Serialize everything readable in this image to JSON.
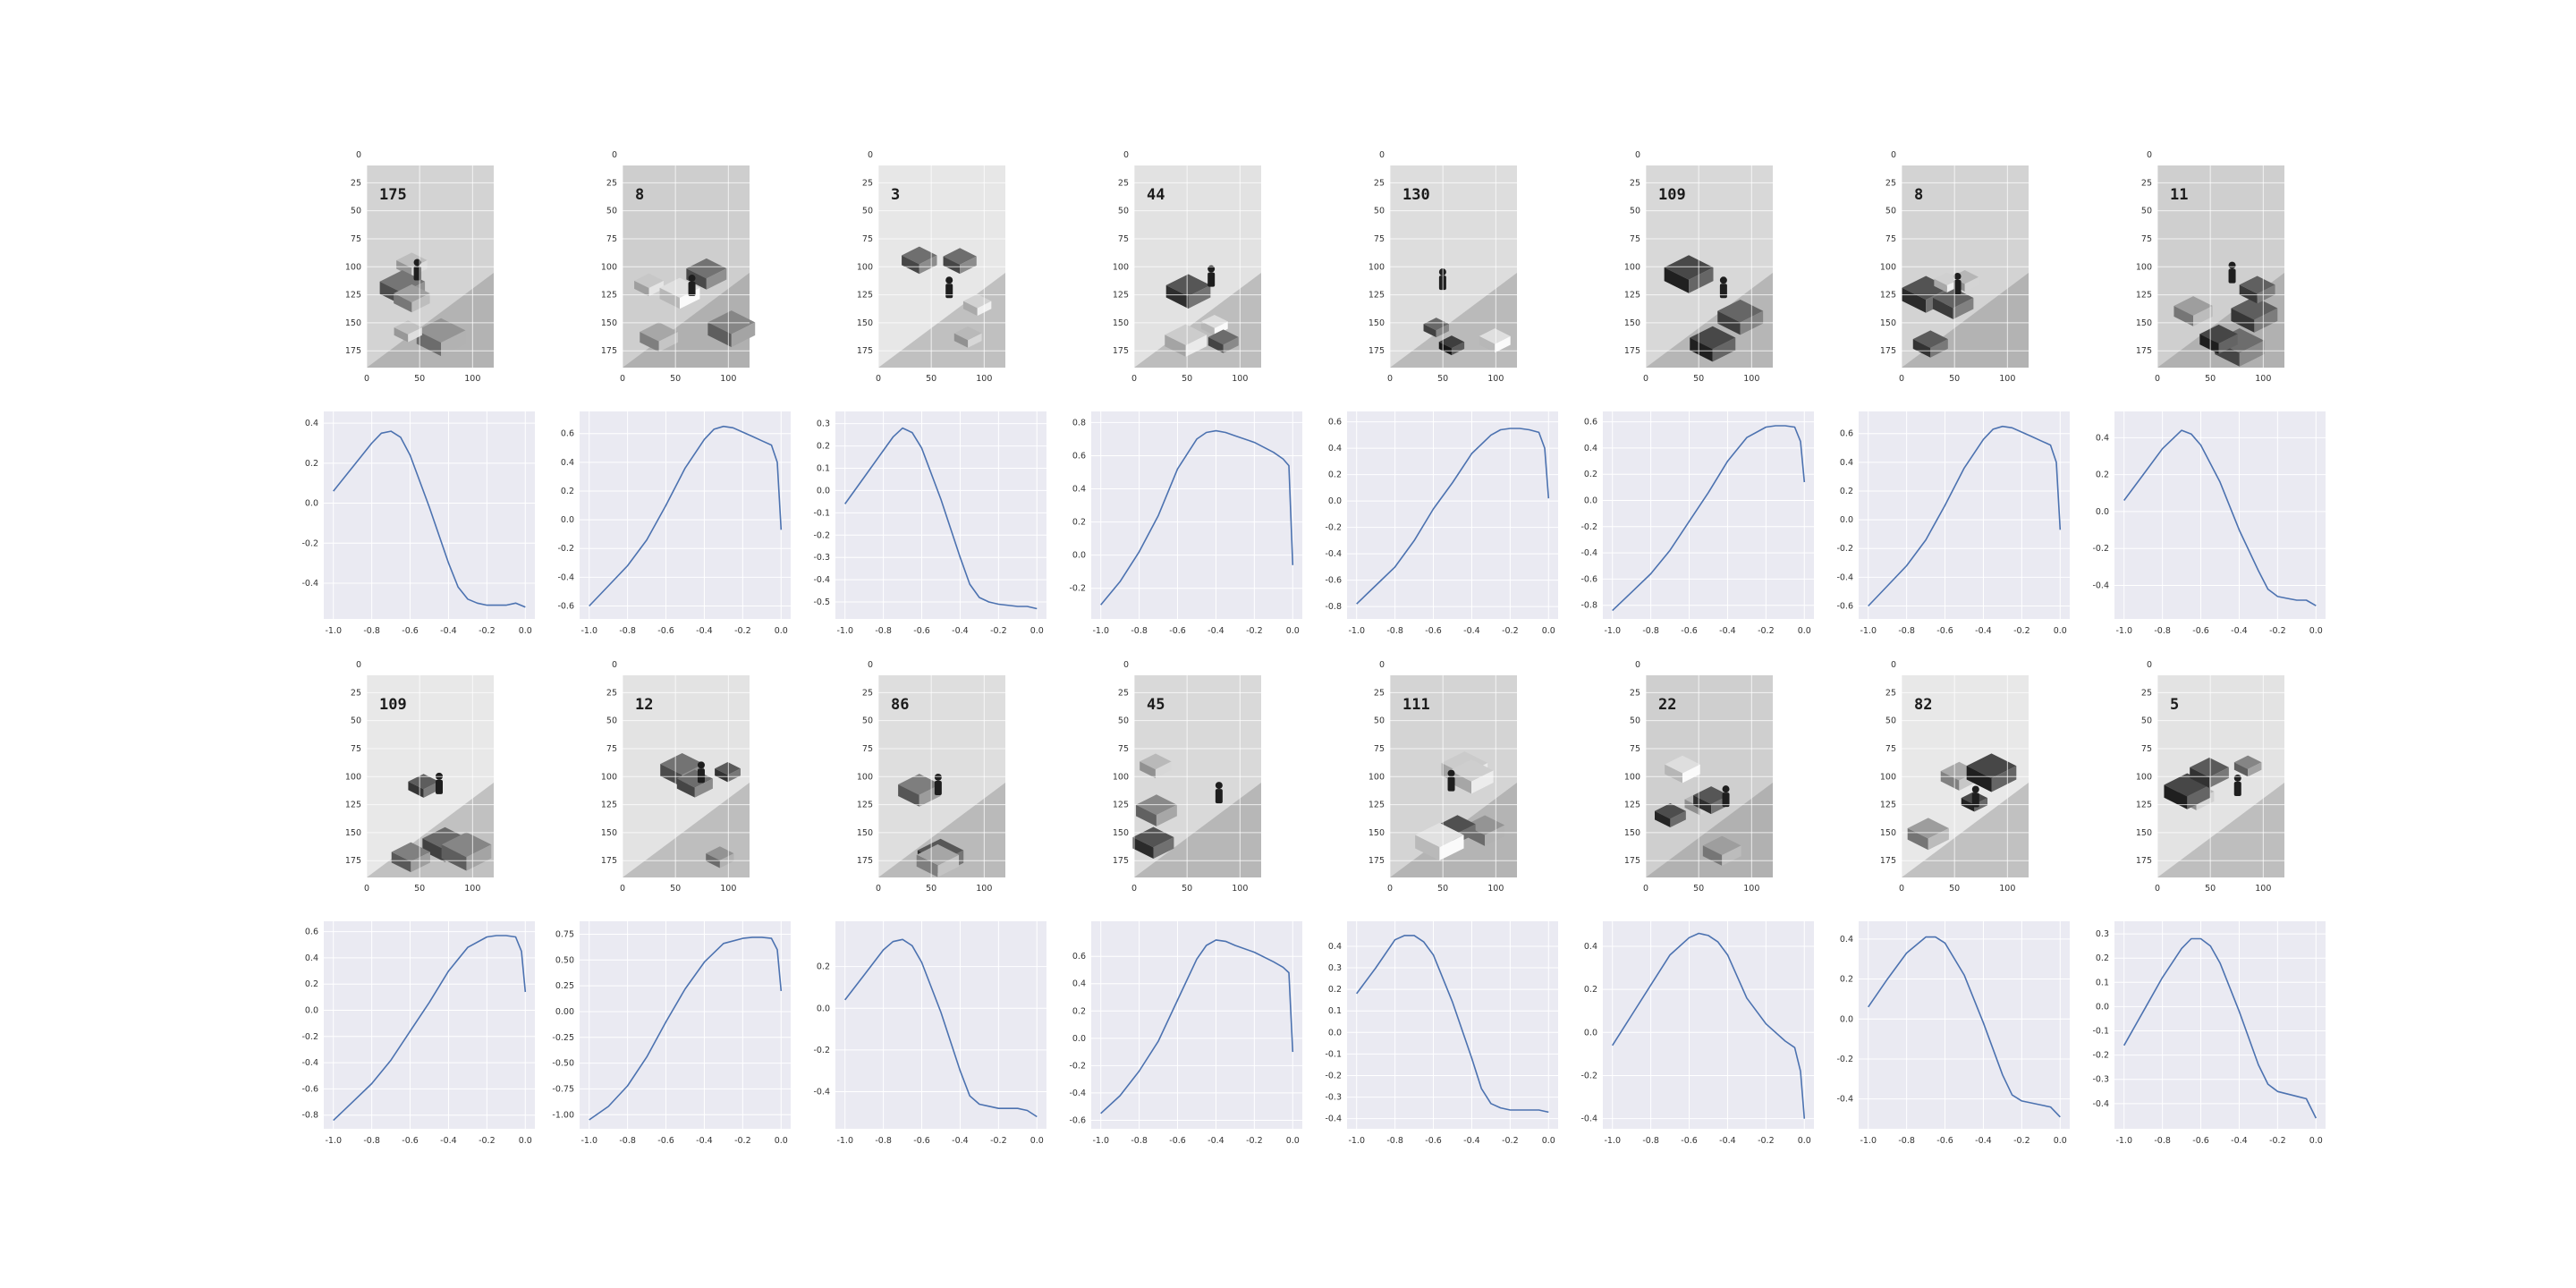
{
  "figure": {
    "rows": 4,
    "cols": 8,
    "layout": "alternating rows: game frames, then value curves"
  },
  "colors": {
    "line": "#4c72b0",
    "plot_background": "#eaeaf2",
    "grid": "#ffffff"
  },
  "frame_axes": {
    "y_ticks": [
      "0",
      "25",
      "50",
      "75",
      "100",
      "125",
      "150",
      "175"
    ],
    "x_ticks": [
      "0",
      "50",
      "100"
    ],
    "ylim": [
      0,
      190
    ],
    "xlim": [
      0,
      120
    ]
  },
  "frames": [
    {
      "score": "175"
    },
    {
      "score": "8"
    },
    {
      "score": "3"
    },
    {
      "score": "44"
    },
    {
      "score": "130"
    },
    {
      "score": "109"
    },
    {
      "score": "8"
    },
    {
      "score": "11"
    },
    {
      "score": "109"
    },
    {
      "score": "12"
    },
    {
      "score": "86"
    },
    {
      "score": "45"
    },
    {
      "score": "111"
    },
    {
      "score": "22"
    },
    {
      "score": "82"
    },
    {
      "score": "5"
    }
  ],
  "chart_data": [
    {
      "type": "line",
      "x_ticks": [
        "-1.0",
        "-0.8",
        "-0.6",
        "-0.4",
        "-0.2",
        "0.0"
      ],
      "y_ticks": [
        "-0.4",
        "-0.2",
        "0.0",
        "0.2",
        "0.4"
      ],
      "ylim": [
        -0.55,
        0.42
      ],
      "x": [
        -1.0,
        -0.9,
        -0.8,
        -0.75,
        -0.7,
        -0.65,
        -0.6,
        -0.5,
        -0.4,
        -0.35,
        -0.3,
        -0.25,
        -0.2,
        -0.1,
        -0.05,
        0.0
      ],
      "y": [
        0.06,
        0.18,
        0.3,
        0.35,
        0.36,
        0.33,
        0.24,
        -0.02,
        -0.3,
        -0.42,
        -0.48,
        -0.5,
        -0.51,
        -0.51,
        -0.5,
        -0.52
      ]
    },
    {
      "type": "line",
      "x_ticks": [
        "-1.0",
        "-0.8",
        "-0.6",
        "-0.4",
        "-0.2",
        "0.0"
      ],
      "y_ticks": [
        "-0.6",
        "-0.4",
        "-0.2",
        "0.0",
        "0.2",
        "0.4",
        "0.6"
      ],
      "ylim": [
        -0.65,
        0.7
      ],
      "x": [
        -1.0,
        -0.9,
        -0.8,
        -0.7,
        -0.6,
        -0.5,
        -0.4,
        -0.35,
        -0.3,
        -0.25,
        -0.2,
        -0.15,
        -0.1,
        -0.05,
        -0.02,
        0.0
      ],
      "y": [
        -0.6,
        -0.46,
        -0.32,
        -0.14,
        0.1,
        0.36,
        0.56,
        0.63,
        0.65,
        0.64,
        0.61,
        0.58,
        0.55,
        0.52,
        0.4,
        -0.07
      ]
    },
    {
      "type": "line",
      "x_ticks": [
        "-1.0",
        "-0.8",
        "-0.6",
        "-0.4",
        "-0.2",
        "0.0"
      ],
      "y_ticks": [
        "-0.5",
        "-0.4",
        "-0.3",
        "-0.2",
        "-0.1",
        "0.0",
        "0.1",
        "0.2",
        "0.3"
      ],
      "ylim": [
        -0.55,
        0.32
      ],
      "x": [
        -1.0,
        -0.9,
        -0.8,
        -0.75,
        -0.7,
        -0.65,
        -0.6,
        -0.5,
        -0.4,
        -0.35,
        -0.3,
        -0.25,
        -0.2,
        -0.1,
        -0.05,
        0.0
      ],
      "y": [
        -0.06,
        0.06,
        0.18,
        0.24,
        0.28,
        0.26,
        0.19,
        -0.04,
        -0.3,
        -0.42,
        -0.48,
        -0.5,
        -0.51,
        -0.52,
        -0.52,
        -0.53
      ]
    },
    {
      "type": "line",
      "x_ticks": [
        "-1.0",
        "-0.8",
        "-0.6",
        "-0.4",
        "-0.2",
        "0.0"
      ],
      "y_ticks": [
        "-0.2",
        "0.0",
        "0.2",
        "0.4",
        "0.6",
        "0.8"
      ],
      "ylim": [
        -0.35,
        0.82
      ],
      "x": [
        -1.0,
        -0.9,
        -0.8,
        -0.7,
        -0.6,
        -0.5,
        -0.45,
        -0.4,
        -0.35,
        -0.3,
        -0.2,
        -0.1,
        -0.05,
        -0.02,
        0.0
      ],
      "y": [
        -0.3,
        -0.16,
        0.02,
        0.24,
        0.52,
        0.7,
        0.74,
        0.75,
        0.74,
        0.72,
        0.68,
        0.62,
        0.58,
        0.54,
        -0.06
      ]
    },
    {
      "type": "line",
      "x_ticks": [
        "-1.0",
        "-0.8",
        "-0.6",
        "-0.4",
        "-0.2",
        "0.0"
      ],
      "y_ticks": [
        "-0.8",
        "-0.6",
        "-0.4",
        "-0.2",
        "0.0",
        "0.2",
        "0.4",
        "0.6"
      ],
      "ylim": [
        -0.85,
        0.62
      ],
      "x": [
        -1.0,
        -0.9,
        -0.8,
        -0.7,
        -0.6,
        -0.5,
        -0.4,
        -0.3,
        -0.25,
        -0.2,
        -0.15,
        -0.1,
        -0.05,
        -0.02,
        0.0
      ],
      "y": [
        -0.78,
        -0.64,
        -0.5,
        -0.3,
        -0.06,
        0.14,
        0.36,
        0.5,
        0.54,
        0.55,
        0.55,
        0.54,
        0.52,
        0.4,
        0.02
      ]
    },
    {
      "type": "line",
      "x_ticks": [
        "-1.0",
        "-0.8",
        "-0.6",
        "-0.4",
        "-0.2",
        "0.0"
      ],
      "y_ticks": [
        "-0.8",
        "-0.6",
        "-0.4",
        "-0.2",
        "0.0",
        "0.2",
        "0.4",
        "0.6"
      ],
      "ylim": [
        -0.86,
        0.62
      ],
      "x": [
        -1.0,
        -0.9,
        -0.8,
        -0.7,
        -0.6,
        -0.5,
        -0.4,
        -0.3,
        -0.2,
        -0.15,
        -0.1,
        -0.05,
        -0.02,
        0.0
      ],
      "y": [
        -0.84,
        -0.7,
        -0.56,
        -0.38,
        -0.16,
        0.06,
        0.3,
        0.48,
        0.56,
        0.57,
        0.57,
        0.56,
        0.45,
        0.14
      ]
    },
    {
      "type": "line",
      "x_ticks": [
        "-1.0",
        "-0.8",
        "-0.6",
        "-0.4",
        "-0.2",
        "0.0"
      ],
      "y_ticks": [
        "-0.6",
        "-0.4",
        "-0.2",
        "0.0",
        "0.2",
        "0.4",
        "0.6"
      ],
      "ylim": [
        -0.65,
        0.7
      ],
      "x": [
        -1.0,
        -0.9,
        -0.8,
        -0.7,
        -0.6,
        -0.5,
        -0.4,
        -0.35,
        -0.3,
        -0.25,
        -0.2,
        -0.15,
        -0.1,
        -0.05,
        -0.02,
        0.0
      ],
      "y": [
        -0.6,
        -0.46,
        -0.32,
        -0.14,
        0.1,
        0.36,
        0.56,
        0.63,
        0.65,
        0.64,
        0.61,
        0.58,
        0.55,
        0.52,
        0.4,
        -0.07
      ]
    },
    {
      "type": "line",
      "x_ticks": [
        "-1.0",
        "-0.8",
        "-0.6",
        "-0.4",
        "-0.2",
        "0.0"
      ],
      "y_ticks": [
        "-0.4",
        "-0.2",
        "0.0",
        "0.2",
        "0.4"
      ],
      "ylim": [
        -0.55,
        0.5
      ],
      "x": [
        -1.0,
        -0.9,
        -0.8,
        -0.7,
        -0.65,
        -0.6,
        -0.5,
        -0.4,
        -0.3,
        -0.25,
        -0.2,
        -0.15,
        -0.1,
        -0.05,
        0.0
      ],
      "y": [
        0.06,
        0.2,
        0.34,
        0.44,
        0.42,
        0.36,
        0.16,
        -0.1,
        -0.32,
        -0.42,
        -0.46,
        -0.47,
        -0.48,
        -0.48,
        -0.51
      ]
    },
    {
      "type": "line",
      "x_ticks": [
        "-1.0",
        "-0.8",
        "-0.6",
        "-0.4",
        "-0.2",
        "0.0"
      ],
      "y_ticks": [
        "-0.8",
        "-0.6",
        "-0.4",
        "-0.2",
        "0.0",
        "0.2",
        "0.4",
        "0.6"
      ],
      "ylim": [
        -0.86,
        0.62
      ],
      "x": [
        -1.0,
        -0.9,
        -0.8,
        -0.7,
        -0.6,
        -0.5,
        -0.4,
        -0.3,
        -0.2,
        -0.15,
        -0.1,
        -0.05,
        -0.02,
        0.0
      ],
      "y": [
        -0.84,
        -0.7,
        -0.56,
        -0.38,
        -0.16,
        0.06,
        0.3,
        0.48,
        0.56,
        0.57,
        0.57,
        0.56,
        0.45,
        0.14
      ]
    },
    {
      "type": "line",
      "x_ticks": [
        "-1.0",
        "-0.8",
        "-0.6",
        "-0.4",
        "-0.2",
        "0.0"
      ],
      "y_ticks": [
        "-1.00",
        "-0.75",
        "-0.50",
        "-0.25",
        "0.00",
        "0.25",
        "0.50",
        "0.75"
      ],
      "ylim": [
        -1.08,
        0.8
      ],
      "x": [
        -1.0,
        -0.9,
        -0.8,
        -0.7,
        -0.6,
        -0.5,
        -0.4,
        -0.3,
        -0.2,
        -0.15,
        -0.1,
        -0.05,
        -0.02,
        0.0
      ],
      "y": [
        -1.05,
        -0.92,
        -0.72,
        -0.44,
        -0.1,
        0.22,
        0.48,
        0.66,
        0.71,
        0.72,
        0.72,
        0.71,
        0.6,
        0.2
      ]
    },
    {
      "type": "line",
      "x_ticks": [
        "-1.0",
        "-0.8",
        "-0.6",
        "-0.4",
        "-0.2",
        "0.0"
      ],
      "y_ticks": [
        "-0.4",
        "-0.2",
        "0.0",
        "0.2"
      ],
      "ylim": [
        -0.55,
        0.38
      ],
      "x": [
        -1.0,
        -0.9,
        -0.8,
        -0.75,
        -0.7,
        -0.65,
        -0.6,
        -0.5,
        -0.4,
        -0.35,
        -0.3,
        -0.25,
        -0.2,
        -0.1,
        -0.05,
        0.0
      ],
      "y": [
        0.04,
        0.16,
        0.28,
        0.32,
        0.33,
        0.3,
        0.22,
        -0.02,
        -0.3,
        -0.42,
        -0.46,
        -0.47,
        -0.48,
        -0.48,
        -0.49,
        -0.52
      ]
    },
    {
      "type": "line",
      "x_ticks": [
        "-1.0",
        "-0.8",
        "-0.6",
        "-0.4",
        "-0.2",
        "0.0"
      ],
      "y_ticks": [
        "-0.6",
        "-0.4",
        "-0.2",
        "0.0",
        "0.2",
        "0.4",
        "0.6"
      ],
      "ylim": [
        -0.62,
        0.8
      ],
      "x": [
        -1.0,
        -0.9,
        -0.8,
        -0.7,
        -0.6,
        -0.5,
        -0.45,
        -0.4,
        -0.35,
        -0.3,
        -0.2,
        -0.1,
        -0.05,
        -0.02,
        0.0
      ],
      "y": [
        -0.55,
        -0.42,
        -0.24,
        -0.02,
        0.28,
        0.58,
        0.68,
        0.72,
        0.71,
        0.68,
        0.63,
        0.56,
        0.52,
        0.48,
        -0.1
      ]
    },
    {
      "type": "line",
      "x_ticks": [
        "-1.0",
        "-0.8",
        "-0.6",
        "-0.4",
        "-0.2",
        "0.0"
      ],
      "y_ticks": [
        "-0.4",
        "-0.3",
        "-0.2",
        "-0.1",
        "0.0",
        "0.1",
        "0.2",
        "0.3",
        "0.4"
      ],
      "ylim": [
        -0.42,
        0.48
      ],
      "x": [
        -1.0,
        -0.9,
        -0.8,
        -0.75,
        -0.7,
        -0.65,
        -0.6,
        -0.5,
        -0.4,
        -0.35,
        -0.3,
        -0.25,
        -0.2,
        -0.1,
        -0.05,
        0.0
      ],
      "y": [
        0.18,
        0.3,
        0.43,
        0.45,
        0.45,
        0.42,
        0.36,
        0.14,
        -0.12,
        -0.26,
        -0.33,
        -0.35,
        -0.36,
        -0.36,
        -0.36,
        -0.37
      ]
    },
    {
      "type": "line",
      "x_ticks": [
        "-1.0",
        "-0.8",
        "-0.6",
        "-0.4",
        "-0.2",
        "0.0"
      ],
      "y_ticks": [
        "-0.4",
        "-0.2",
        "0.0",
        "0.2",
        "0.4"
      ],
      "ylim": [
        -0.42,
        0.48
      ],
      "x": [
        -1.0,
        -0.9,
        -0.8,
        -0.7,
        -0.6,
        -0.55,
        -0.5,
        -0.45,
        -0.4,
        -0.3,
        -0.2,
        -0.1,
        -0.05,
        -0.02,
        0.0
      ],
      "y": [
        -0.06,
        0.08,
        0.22,
        0.36,
        0.44,
        0.46,
        0.45,
        0.42,
        0.36,
        0.16,
        0.04,
        -0.04,
        -0.07,
        -0.18,
        -0.4
      ]
    },
    {
      "type": "line",
      "x_ticks": [
        "-1.0",
        "-0.8",
        "-0.6",
        "-0.4",
        "-0.2",
        "0.0"
      ],
      "y_ticks": [
        "-0.4",
        "-0.2",
        "0.0",
        "0.2",
        "0.4"
      ],
      "ylim": [
        -0.52,
        0.45
      ],
      "x": [
        -1.0,
        -0.9,
        -0.8,
        -0.7,
        -0.65,
        -0.6,
        -0.5,
        -0.4,
        -0.3,
        -0.25,
        -0.2,
        -0.1,
        -0.05,
        0.0
      ],
      "y": [
        0.06,
        0.2,
        0.33,
        0.41,
        0.41,
        0.38,
        0.22,
        -0.02,
        -0.28,
        -0.38,
        -0.41,
        -0.43,
        -0.44,
        -0.49
      ]
    },
    {
      "type": "line",
      "x_ticks": [
        "-1.0",
        "-0.8",
        "-0.6",
        "-0.4",
        "-0.2",
        "0.0"
      ],
      "y_ticks": [
        "-0.4",
        "-0.3",
        "-0.2",
        "-0.1",
        "0.0",
        "0.1",
        "0.2",
        "0.3"
      ],
      "ylim": [
        -0.48,
        0.32
      ],
      "x": [
        -1.0,
        -0.9,
        -0.8,
        -0.7,
        -0.65,
        -0.6,
        -0.55,
        -0.5,
        -0.4,
        -0.3,
        -0.25,
        -0.2,
        -0.1,
        -0.05,
        0.0
      ],
      "y": [
        -0.16,
        -0.02,
        0.12,
        0.24,
        0.28,
        0.28,
        0.25,
        0.18,
        -0.02,
        -0.24,
        -0.32,
        -0.35,
        -0.37,
        -0.38,
        -0.46
      ]
    }
  ]
}
